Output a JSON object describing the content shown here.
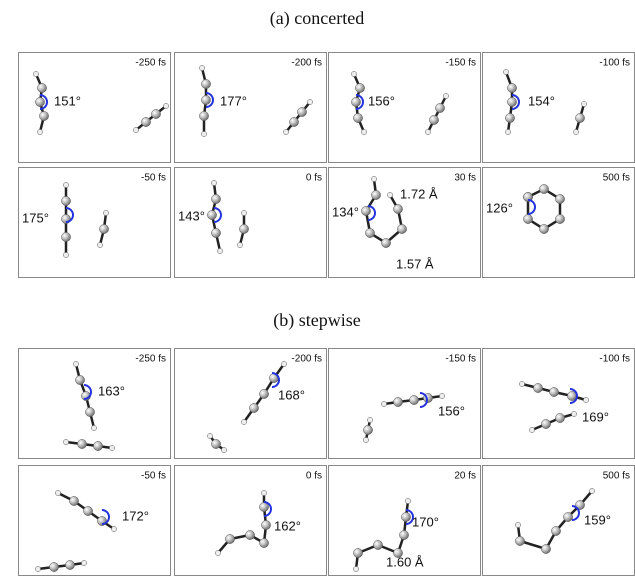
{
  "sections": [
    {
      "title": "(a) concerted",
      "panels": [
        {
          "time": "-250 fs",
          "angle": "151°"
        },
        {
          "time": "-200 fs",
          "angle": "177°"
        },
        {
          "time": "-150 fs",
          "angle": "156°"
        },
        {
          "time": "-100 fs",
          "angle": "154°"
        },
        {
          "time": "-50 fs",
          "angle": "175°"
        },
        {
          "time": "0 fs",
          "angle": "143°"
        },
        {
          "time": "30 fs",
          "angle": "134°",
          "distances": [
            "1.72 Å",
            "1.57 Å"
          ]
        },
        {
          "time": "500 fs",
          "angle": "126°"
        }
      ]
    },
    {
      "title": "(b) stepwise",
      "panels": [
        {
          "time": "-250 fs",
          "angle": "163°"
        },
        {
          "time": "-200 fs",
          "angle": "168°"
        },
        {
          "time": "-150 fs",
          "angle": "156°"
        },
        {
          "time": "-100 fs",
          "angle": "169°"
        },
        {
          "time": "-50 fs",
          "angle": "172°"
        },
        {
          "time": "0 fs",
          "angle": "162°"
        },
        {
          "time": "20 fs",
          "angle": "170°",
          "distances": [
            "1.60 Å"
          ]
        },
        {
          "time": "500 fs",
          "angle": "159°"
        }
      ]
    }
  ]
}
